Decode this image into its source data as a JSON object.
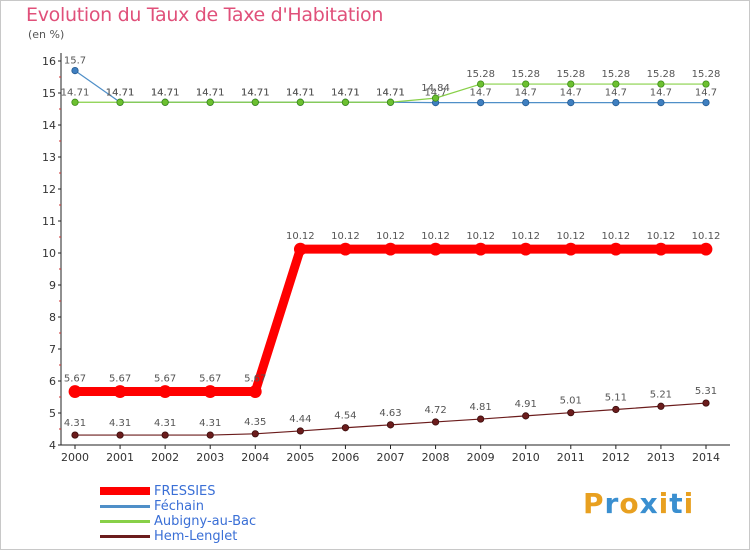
{
  "chart_data": {
    "type": "line",
    "title": "Evolution du Taux de Taxe d'Habitation",
    "unit_label": "(en %)",
    "x": [
      "2000",
      "2001",
      "2002",
      "2003",
      "2004",
      "2005",
      "2006",
      "2007",
      "2008",
      "2009",
      "2010",
      "2011",
      "2012",
      "2013",
      "2014"
    ],
    "ylim": [
      4,
      16
    ],
    "yticks": [
      "4",
      "5",
      "6",
      "7",
      "8",
      "9",
      "10",
      "11",
      "12",
      "13",
      "14",
      "15",
      "16"
    ],
    "grid": false,
    "legend_position": "bottom-left",
    "series": [
      {
        "name": "FRESSIES",
        "color": "#ff0000",
        "values": [
          5.67,
          5.67,
          5.67,
          5.67,
          5.67,
          10.12,
          10.12,
          10.12,
          10.12,
          10.12,
          10.12,
          10.12,
          10.12,
          10.12,
          10.12
        ],
        "labels": [
          "5.67",
          "5.67",
          "5.67",
          "5.67",
          "5.67",
          "10.12",
          "10.12",
          "10.12",
          "10.12",
          "10.12",
          "10.12",
          "10.12",
          "10.12",
          "10.12",
          "10.12"
        ]
      },
      {
        "name": "Féchain",
        "color": "#4f8fc8",
        "values": [
          15.7,
          14.71,
          14.71,
          14.71,
          14.71,
          14.71,
          14.71,
          14.71,
          14.7,
          14.7,
          14.7,
          14.7,
          14.7,
          14.7,
          14.7
        ],
        "labels": [
          "15.7",
          "14.71",
          "14.71",
          "14.71",
          "14.71",
          "14.71",
          "14.71",
          "14.71",
          "14.7",
          "14.7",
          "14.7",
          "14.7",
          "14.7",
          "14.7",
          "14.7"
        ]
      },
      {
        "name": "Aubigny-au-Bac",
        "color": "#88d048",
        "values": [
          14.71,
          14.71,
          14.71,
          14.71,
          14.71,
          14.71,
          14.71,
          14.71,
          14.84,
          15.28,
          15.28,
          15.28,
          15.28,
          15.28,
          15.28
        ],
        "labels": [
          "14.71",
          "14.71",
          "14.71",
          "14.71",
          "14.71",
          "14.71",
          "14.71",
          "14.71",
          "14.84",
          "15.28",
          "15.28",
          "15.28",
          "15.28",
          "15.28",
          "15.28"
        ]
      },
      {
        "name": "Hem-Lenglet",
        "color": "#6b1c1c",
        "values": [
          4.31,
          4.31,
          4.31,
          4.31,
          4.35,
          4.44,
          4.54,
          4.63,
          4.72,
          4.81,
          4.91,
          5.01,
          5.11,
          5.21,
          5.31
        ],
        "labels": [
          "4.31",
          "4.31",
          "4.31",
          "4.31",
          "4.35",
          "4.44",
          "4.54",
          "4.63",
          "4.72",
          "4.81",
          "4.91",
          "5.01",
          "5.11",
          "5.21",
          "5.31"
        ]
      }
    ]
  },
  "brand": {
    "letters": [
      "P",
      "r",
      "o",
      "x",
      "i",
      "t",
      "i"
    ],
    "colors": [
      "#e8a020",
      "#3a8fd0",
      "#e8a020",
      "#3a8fd0",
      "#e8a020",
      "#3a8fd0",
      "#e8a020"
    ]
  }
}
